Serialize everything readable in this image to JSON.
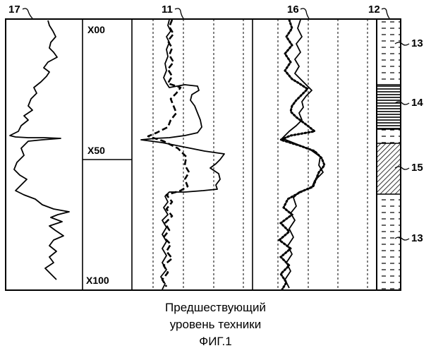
{
  "figure": {
    "reference_numerals": {
      "gamma_track": "17",
      "resistivity_track": "11",
      "porosity_track": "16",
      "lithology_column": "12",
      "layer_top": "13",
      "layer_a": "14",
      "layer_b": "15",
      "layer_bottom": "13"
    },
    "depth_labels": {
      "top": "X00",
      "middle": "X50",
      "bottom": "X100"
    },
    "caption": {
      "line1": "Предшествующий",
      "line2": "уровень техники",
      "line3": "ФИГ.1"
    },
    "lithology": [
      {
        "label": "13",
        "pattern": "dashed"
      },
      {
        "label": "14",
        "pattern": "horizontal-lines"
      },
      {
        "label": "-",
        "pattern": "dashed"
      },
      {
        "label": "15",
        "pattern": "diagonal-hatch"
      },
      {
        "label": "13",
        "pattern": "dashed"
      }
    ]
  }
}
